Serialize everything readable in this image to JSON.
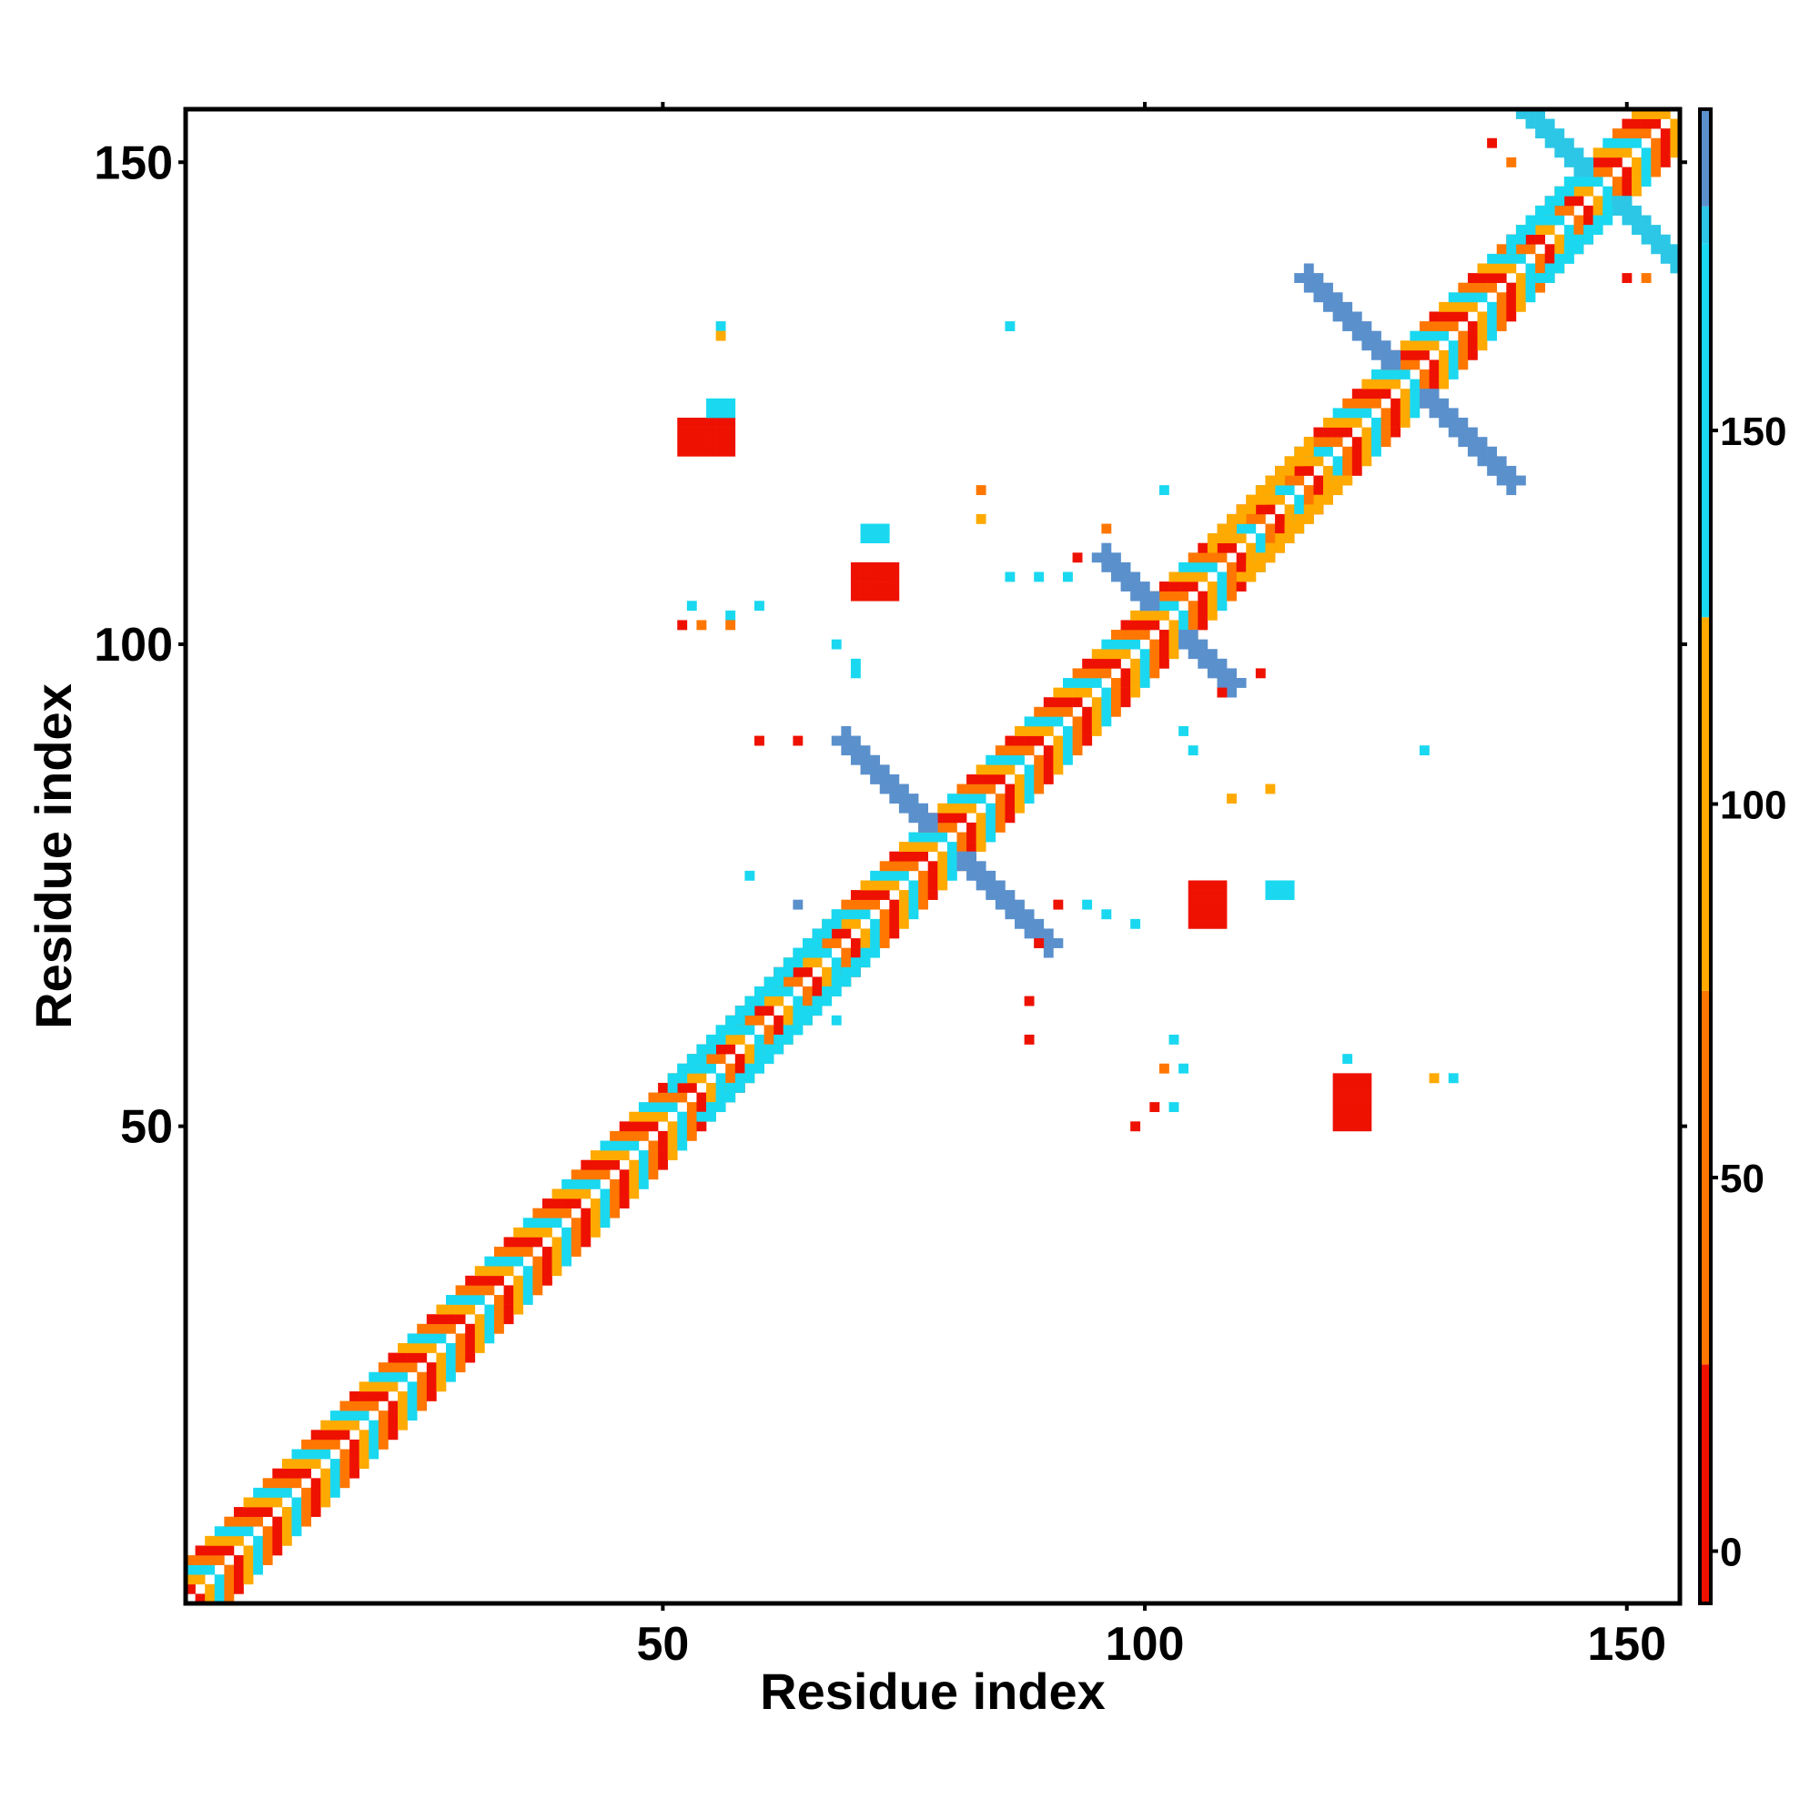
{
  "chart_data": {
    "type": "heatmap",
    "title": "",
    "xlabel": "Residue index",
    "ylabel": "Residue index",
    "xlim": [
      1,
      155
    ],
    "ylim": [
      1,
      155
    ],
    "x_ticks": [
      50,
      100,
      150
    ],
    "y_ticks": [
      50,
      100,
      150
    ],
    "symmetric": true,
    "colorbar": {
      "ticks": [
        0,
        50,
        100,
        150
      ],
      "range": [
        -7,
        193
      ],
      "bands": [
        {
          "from": -7,
          "to": 25,
          "color": "#ee1100"
        },
        {
          "from": 25,
          "to": 75,
          "color": "#ff7700"
        },
        {
          "from": 75,
          "to": 125,
          "color": "#ffaa00"
        },
        {
          "from": 125,
          "to": 175,
          "color": "#1ad8f0"
        },
        {
          "from": 175,
          "to": 180,
          "color": "#2cc7e6"
        },
        {
          "from": 180,
          "to": 193,
          "color": "#5a90cc"
        },
        {
          "from": 193,
          "to": 200,
          "color": "#ffffff"
        }
      ]
    },
    "diagonal_bands": [
      {
        "start": 1,
        "end": 155,
        "offsets": [
          1,
          2,
          3,
          4
        ],
        "colors": [
          "#ff7700",
          "#ee1100",
          "#ffaa00",
          "#1ad8f0"
        ]
      }
    ],
    "helix_blocks": [
      {
        "start": 51,
        "end": 68,
        "offsets": [
          3,
          4
        ],
        "color": "#1ad8f0"
      },
      {
        "start": 107,
        "end": 117,
        "offsets": [
          3,
          4
        ],
        "color": "#ffaa00"
      },
      {
        "start": 138,
        "end": 146,
        "offsets": [
          3,
          4
        ],
        "color": "#1ad8f0"
      }
    ],
    "antiparallel_strands": [
      {
        "center": 79,
        "length": 10,
        "offset_start": 3,
        "color": "#5a90cc"
      },
      {
        "center": 102,
        "length": 6,
        "offset_start": 3,
        "color": "#5a90cc"
      },
      {
        "center": 127,
        "length": 10,
        "offset_start": 3,
        "color": "#5a90cc"
      },
      {
        "center": 147,
        "length": 7,
        "offset_start": 3,
        "color": "#2cc7e6"
      }
    ],
    "off_diagonal_clusters": [
      {
        "x": 52,
        "y": 120,
        "w": 6,
        "h": 4,
        "color": "#ee1100"
      },
      {
        "x": 70,
        "y": 105,
        "w": 5,
        "h": 4,
        "color": "#ee1100"
      },
      {
        "x": 71,
        "y": 111,
        "w": 3,
        "h": 2,
        "color": "#1ad8f0"
      },
      {
        "x": 105,
        "y": 71,
        "w": 4,
        "h": 5,
        "color": "#ee1100"
      },
      {
        "x": 120,
        "y": 50,
        "w": 4,
        "h": 6,
        "color": "#ee1100"
      },
      {
        "x": 113,
        "y": 74,
        "w": 3,
        "h": 2,
        "color": "#1ad8f0"
      },
      {
        "x": 55,
        "y": 124,
        "w": 3,
        "h": 2,
        "color": "#1ad8f0"
      }
    ],
    "scattered_contacts": [
      {
        "x": 56,
        "y": 133,
        "color": "#1ad8f0"
      },
      {
        "x": 56,
        "y": 132,
        "color": "#ffaa00"
      },
      {
        "x": 86,
        "y": 133,
        "color": "#1ad8f0"
      },
      {
        "x": 53,
        "y": 104,
        "color": "#1ad8f0"
      },
      {
        "x": 52,
        "y": 102,
        "color": "#ee1100"
      },
      {
        "x": 54,
        "y": 102,
        "color": "#ff7700"
      },
      {
        "x": 60,
        "y": 104,
        "color": "#1ad8f0"
      },
      {
        "x": 57,
        "y": 103,
        "color": "#1ad8f0"
      },
      {
        "x": 57,
        "y": 102,
        "color": "#ff7700"
      },
      {
        "x": 60,
        "y": 90,
        "color": "#ee1100"
      },
      {
        "x": 64,
        "y": 90,
        "color": "#ee1100"
      },
      {
        "x": 68,
        "y": 100,
        "color": "#1ad8f0"
      },
      {
        "x": 70,
        "y": 98,
        "color": "#1ad8f0"
      },
      {
        "x": 70,
        "y": 97,
        "color": "#1ad8f0"
      },
      {
        "x": 83,
        "y": 116,
        "color": "#ff7700"
      },
      {
        "x": 83,
        "y": 113,
        "color": "#ffaa00"
      },
      {
        "x": 86,
        "y": 107,
        "color": "#1ad8f0"
      },
      {
        "x": 89,
        "y": 107,
        "color": "#1ad8f0"
      },
      {
        "x": 92,
        "y": 107,
        "color": "#1ad8f0"
      },
      {
        "x": 93,
        "y": 109,
        "color": "#ee1100"
      },
      {
        "x": 96,
        "y": 112,
        "color": "#ff7700"
      },
      {
        "x": 102,
        "y": 116,
        "color": "#1ad8f0"
      },
      {
        "x": 89,
        "y": 69,
        "color": "#ee1100"
      },
      {
        "x": 88,
        "y": 63,
        "color": "#ee1100"
      },
      {
        "x": 88,
        "y": 59,
        "color": "#ee1100"
      },
      {
        "x": 91,
        "y": 73,
        "color": "#ee1100"
      },
      {
        "x": 94,
        "y": 73,
        "color": "#1ad8f0"
      },
      {
        "x": 96,
        "y": 72,
        "color": "#1ad8f0"
      },
      {
        "x": 99,
        "y": 71,
        "color": "#1ad8f0"
      },
      {
        "x": 104,
        "y": 91,
        "color": "#1ad8f0"
      },
      {
        "x": 105,
        "y": 89,
        "color": "#1ad8f0"
      },
      {
        "x": 109,
        "y": 84,
        "color": "#ffaa00"
      },
      {
        "x": 113,
        "y": 85,
        "color": "#ffaa00"
      },
      {
        "x": 108,
        "y": 95,
        "color": "#ee1100"
      },
      {
        "x": 112,
        "y": 97,
        "color": "#ee1100"
      },
      {
        "x": 129,
        "y": 89,
        "color": "#1ad8f0"
      },
      {
        "x": 102,
        "y": 56,
        "color": "#ff7700"
      },
      {
        "x": 104,
        "y": 56,
        "color": "#1ad8f0"
      },
      {
        "x": 103,
        "y": 59,
        "color": "#1ad8f0"
      },
      {
        "x": 101,
        "y": 52,
        "color": "#ee1100"
      },
      {
        "x": 99,
        "y": 50,
        "color": "#ee1100"
      },
      {
        "x": 103,
        "y": 52,
        "color": "#1ad8f0"
      },
      {
        "x": 130,
        "y": 55,
        "color": "#ffaa00"
      },
      {
        "x": 132,
        "y": 55,
        "color": "#1ad8f0"
      },
      {
        "x": 121,
        "y": 57,
        "color": "#1ad8f0"
      },
      {
        "x": 59,
        "y": 76,
        "color": "#1ad8f0"
      },
      {
        "x": 68,
        "y": 61,
        "color": "#1ad8f0"
      },
      {
        "x": 66,
        "y": 63,
        "color": "#1ad8f0"
      },
      {
        "x": 64,
        "y": 73,
        "color": "#5a90cc"
      },
      {
        "x": 138,
        "y": 150,
        "color": "#ff7700"
      },
      {
        "x": 136,
        "y": 152,
        "color": "#ee1100"
      },
      {
        "x": 150,
        "y": 138,
        "color": "#ee1100"
      },
      {
        "x": 152,
        "y": 138,
        "color": "#ff7700"
      }
    ]
  }
}
